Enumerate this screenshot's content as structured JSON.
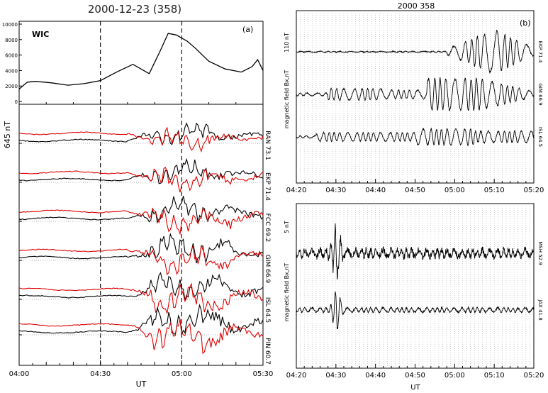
{
  "chart_data": [
    {
      "panel": "(a)",
      "type": "line",
      "title": "2000-12-23 (358)",
      "subpanel_top": {
        "label": "WIC",
        "ylim": [
          0,
          10000
        ],
        "yticks": [
          "0",
          "2000",
          "4000",
          "6000",
          "8000",
          "10000"
        ],
        "series": [
          {
            "x": [
              0,
              3,
              6,
              12,
              18,
              24,
              30,
              36,
              42,
              48,
              52,
              55,
              58,
              62,
              65,
              70,
              76,
              82,
              86,
              88,
              90
            ],
            "y": [
              1600,
              2500,
              2600,
              2400,
              2100,
              2300,
              2700,
              3800,
              4800,
              3600,
              6500,
              8800,
              8600,
              7800,
              6900,
              5200,
              4200,
              3800,
              4500,
              5400,
              4000
            ]
          }
        ]
      },
      "y_unit_label": "645 nT",
      "xlabel": "UT",
      "xlim": [
        0,
        90
      ],
      "xticks": [
        "04:00",
        "04:30",
        "05:00",
        "05:30"
      ],
      "vlines": [
        30,
        60
      ],
      "stations": [
        "RAN 73.1",
        "EKP 71.4",
        "FCC 69.2",
        "GIM 66.9",
        "ISL 64.5",
        "PIN 60.7"
      ],
      "series_colors": [
        "#000000",
        "#e00000"
      ]
    },
    {
      "panel": "(b)",
      "type": "line",
      "title": "2000 358",
      "top": {
        "scale_label": "110 nT",
        "ylabel": "magnetic field Bx,nT",
        "stations": [
          "EKP 71.4",
          "GIM 66.9",
          "ISL 64.5"
        ]
      },
      "bottom": {
        "scale_label": "5 nT",
        "ylabel": "magnetic field Bx,nT",
        "stations": [
          "MSH 52.9",
          "JAX 41.8"
        ]
      },
      "xlabel": "UT",
      "xticks": [
        "04:20",
        "04:30",
        "04:40",
        "04:50",
        "05:00",
        "05:10",
        "05:20"
      ]
    }
  ]
}
